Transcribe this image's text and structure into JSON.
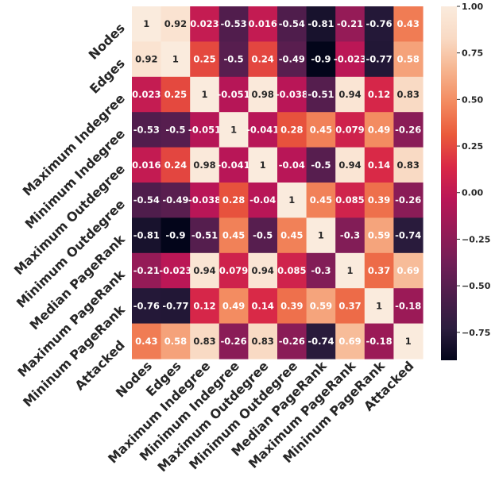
{
  "chart_data": {
    "type": "heatmap",
    "title": "",
    "xlabel": "",
    "ylabel": "",
    "row_labels": [
      "Nodes",
      "Edges",
      "Maximum Indegree",
      "Minimum Indegree",
      "Maximum Outdegree",
      "Minimum Outdegree",
      "Median PageRank",
      "Maximum PageRank",
      "Mininum PageRank",
      "Attacked"
    ],
    "col_labels": [
      "Nodes",
      "Edges",
      "Maximum Indegree",
      "Minimum Indegree",
      "Maximum Outdegree",
      "Minimum Outdegree",
      "Median PageRank",
      "Maximum PageRank",
      "Mininum PageRank",
      "Attacked"
    ],
    "values": [
      [
        1,
        0.92,
        0.023,
        -0.53,
        0.016,
        -0.54,
        -0.81,
        -0.21,
        -0.76,
        0.43
      ],
      [
        0.92,
        1,
        0.25,
        -0.5,
        0.24,
        -0.49,
        -0.9,
        -0.023,
        -0.77,
        0.58
      ],
      [
        0.023,
        0.25,
        1,
        -0.051,
        0.98,
        -0.038,
        -0.51,
        0.94,
        0.12,
        0.83
      ],
      [
        -0.53,
        -0.5,
        -0.051,
        1,
        -0.041,
        0.28,
        0.45,
        0.079,
        0.49,
        -0.26
      ],
      [
        0.016,
        0.24,
        0.98,
        -0.041,
        1,
        -0.04,
        -0.5,
        0.94,
        0.14,
        0.83
      ],
      [
        -0.54,
        -0.49,
        -0.038,
        0.28,
        -0.04,
        1,
        0.45,
        0.085,
        0.39,
        -0.26
      ],
      [
        -0.81,
        -0.9,
        -0.51,
        0.45,
        -0.5,
        0.45,
        1,
        -0.3,
        0.59,
        -0.74
      ],
      [
        -0.21,
        -0.023,
        0.94,
        0.079,
        0.94,
        0.085,
        -0.3,
        1,
        0.37,
        0.69
      ],
      [
        -0.76,
        -0.77,
        0.12,
        0.49,
        0.14,
        0.39,
        0.59,
        0.37,
        1,
        -0.18
      ],
      [
        0.43,
        0.58,
        0.83,
        -0.26,
        0.83,
        -0.26,
        -0.74,
        0.69,
        -0.18,
        1
      ]
    ],
    "value_labels": [
      [
        "1",
        "0.92",
        "0.023",
        "-0.53",
        "0.016",
        "-0.54",
        "-0.81",
        "-0.21",
        "-0.76",
        "0.43"
      ],
      [
        "0.92",
        "1",
        "0.25",
        "-0.5",
        "0.24",
        "-0.49",
        "-0.9",
        "-0.023",
        "-0.77",
        "0.58"
      ],
      [
        "0.023",
        "0.25",
        "1",
        "-0.051",
        "0.98",
        "-0.038",
        "-0.51",
        "0.94",
        "0.12",
        "0.83"
      ],
      [
        "-0.53",
        "-0.5",
        "-0.051",
        "1",
        "-0.041",
        "0.28",
        "0.45",
        "0.079",
        "0.49",
        "-0.26"
      ],
      [
        "0.016",
        "0.24",
        "0.98",
        "-0.041",
        "1",
        "-0.04",
        "-0.5",
        "0.94",
        "0.14",
        "0.83"
      ],
      [
        "-0.54",
        "-0.49",
        "-0.038",
        "0.28",
        "-0.04",
        "1",
        "0.45",
        "0.085",
        "0.39",
        "-0.26"
      ],
      [
        "-0.81",
        "-0.9",
        "-0.51",
        "0.45",
        "-0.5",
        "0.45",
        "1",
        "-0.3",
        "0.59",
        "-0.74"
      ],
      [
        "-0.21",
        "-0.023",
        "0.94",
        "0.079",
        "0.94",
        "0.085",
        "-0.3",
        "1",
        "0.37",
        "0.69"
      ],
      [
        "-0.76",
        "-0.77",
        "0.12",
        "0.49",
        "0.14",
        "0.39",
        "0.59",
        "0.37",
        "1",
        "-0.18"
      ],
      [
        "0.43",
        "0.58",
        "0.83",
        "-0.26",
        "0.83",
        "-0.26",
        "-0.74",
        "0.69",
        "-0.18",
        "1"
      ]
    ],
    "colorbar": {
      "min": -0.9,
      "max": 1.0,
      "ticks": [
        1.0,
        0.75,
        0.5,
        0.25,
        0.0,
        -0.25,
        -0.5,
        -0.75
      ],
      "tick_labels": [
        "1.00",
        "0.75",
        "0.50",
        "0.25",
        "0.00",
        "−0.25",
        "−0.50",
        "−0.75"
      ]
    },
    "colormap": {
      "name": "rocket",
      "stops": [
        "#03051a",
        "#2c1d3f",
        "#4c1d4b",
        "#701f57",
        "#951b57",
        "#b91657",
        "#d92847",
        "#ea5a3b",
        "#f38a5f",
        "#f6b48e",
        "#f9dac4",
        "#faebdd"
      ]
    },
    "annotation_dark_text_color": "#262626",
    "annotation_light_text_color": "#ffffff"
  }
}
